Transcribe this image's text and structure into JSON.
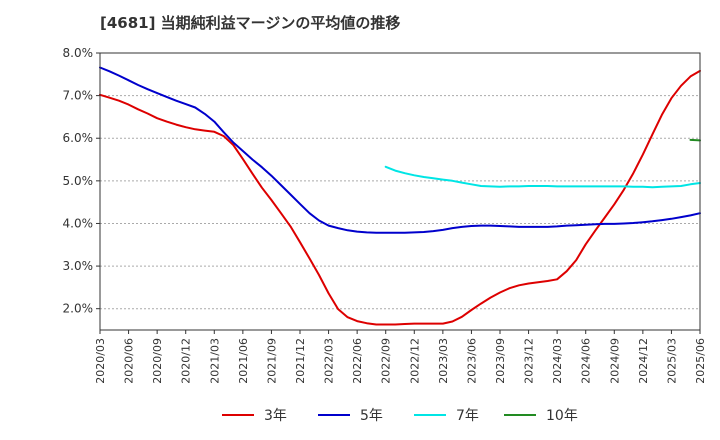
{
  "chart_data": {
    "type": "line",
    "title": "[4681]  当期純利益マージンの平均値の推移",
    "xlabel": "",
    "ylabel": "",
    "ylim": [
      1.5,
      8.0
    ],
    "yticks": [
      "2.0%",
      "3.0%",
      "4.0%",
      "5.0%",
      "6.0%",
      "7.0%",
      "8.0%"
    ],
    "x_ticks": [
      "2020/03",
      "2020/06",
      "2020/09",
      "2020/12",
      "2021/03",
      "2021/06",
      "2021/09",
      "2021/12",
      "2022/03",
      "2022/06",
      "2022/09",
      "2022/12",
      "2023/03",
      "2023/06",
      "2023/09",
      "2023/12",
      "2024/03",
      "2024/06",
      "2024/09",
      "2024/12",
      "2025/03",
      "2025/06"
    ],
    "grid": "horizontal",
    "legend_position": "bottom",
    "series": [
      {
        "name": "3年",
        "color": "#dd0000",
        "points": [
          [
            "2020/03",
            7.02
          ],
          [
            "2020/04",
            6.95
          ],
          [
            "2020/05",
            6.88
          ],
          [
            "2020/06",
            6.79
          ],
          [
            "2020/07",
            6.68
          ],
          [
            "2020/08",
            6.58
          ],
          [
            "2020/09",
            6.47
          ],
          [
            "2020/10",
            6.39
          ],
          [
            "2020/11",
            6.32
          ],
          [
            "2020/12",
            6.26
          ],
          [
            "2021/01",
            6.21
          ],
          [
            "2021/02",
            6.18
          ],
          [
            "2021/03",
            6.15
          ],
          [
            "2021/04",
            6.05
          ],
          [
            "2021/05",
            5.84
          ],
          [
            "2021/06",
            5.51
          ],
          [
            "2021/07",
            5.17
          ],
          [
            "2021/08",
            4.84
          ],
          [
            "2021/09",
            4.55
          ],
          [
            "2021/10",
            4.24
          ],
          [
            "2021/11",
            3.93
          ],
          [
            "2021/12",
            3.56
          ],
          [
            "2022/01",
            3.18
          ],
          [
            "2022/02",
            2.79
          ],
          [
            "2022/03",
            2.36
          ],
          [
            "2022/04",
            1.99
          ],
          [
            "2022/05",
            1.8
          ],
          [
            "2022/06",
            1.71
          ],
          [
            "2022/07",
            1.66
          ],
          [
            "2022/08",
            1.63
          ],
          [
            "2022/09",
            1.63
          ],
          [
            "2022/10",
            1.63
          ],
          [
            "2022/11",
            1.64
          ],
          [
            "2022/12",
            1.65
          ],
          [
            "2023/01",
            1.65
          ],
          [
            "2023/02",
            1.65
          ],
          [
            "2023/03",
            1.65
          ],
          [
            "2023/04",
            1.7
          ],
          [
            "2023/05",
            1.81
          ],
          [
            "2023/06",
            1.97
          ],
          [
            "2023/07",
            2.12
          ],
          [
            "2023/08",
            2.26
          ],
          [
            "2023/09",
            2.38
          ],
          [
            "2023/10",
            2.48
          ],
          [
            "2023/11",
            2.55
          ],
          [
            "2023/12",
            2.59
          ],
          [
            "2024/01",
            2.62
          ],
          [
            "2024/02",
            2.65
          ],
          [
            "2024/03",
            2.69
          ],
          [
            "2024/04",
            2.88
          ],
          [
            "2024/05",
            3.14
          ],
          [
            "2024/06",
            3.51
          ],
          [
            "2024/07",
            3.83
          ],
          [
            "2024/08",
            4.14
          ],
          [
            "2024/09",
            4.45
          ],
          [
            "2024/10",
            4.79
          ],
          [
            "2024/11",
            5.18
          ],
          [
            "2024/12",
            5.62
          ],
          [
            "2025/01",
            6.09
          ],
          [
            "2025/02",
            6.55
          ],
          [
            "2025/03",
            6.94
          ],
          [
            "2025/04",
            7.23
          ],
          [
            "2025/05",
            7.45
          ],
          [
            "2025/06",
            7.58
          ]
        ]
      },
      {
        "name": "5年",
        "color": "#0000cc",
        "points": [
          [
            "2020/03",
            7.66
          ],
          [
            "2020/04",
            7.57
          ],
          [
            "2020/05",
            7.47
          ],
          [
            "2020/06",
            7.36
          ],
          [
            "2020/07",
            7.25
          ],
          [
            "2020/08",
            7.15
          ],
          [
            "2020/09",
            7.06
          ],
          [
            "2020/10",
            6.97
          ],
          [
            "2020/11",
            6.88
          ],
          [
            "2020/12",
            6.8
          ],
          [
            "2021/01",
            6.72
          ],
          [
            "2021/02",
            6.57
          ],
          [
            "2021/03",
            6.39
          ],
          [
            "2021/04",
            6.14
          ],
          [
            "2021/05",
            5.9
          ],
          [
            "2021/06",
            5.7
          ],
          [
            "2021/07",
            5.5
          ],
          [
            "2021/08",
            5.32
          ],
          [
            "2021/09",
            5.12
          ],
          [
            "2021/10",
            4.9
          ],
          [
            "2021/11",
            4.68
          ],
          [
            "2021/12",
            4.46
          ],
          [
            "2022/01",
            4.24
          ],
          [
            "2022/02",
            4.07
          ],
          [
            "2022/03",
            3.95
          ],
          [
            "2022/04",
            3.89
          ],
          [
            "2022/05",
            3.84
          ],
          [
            "2022/06",
            3.81
          ],
          [
            "2022/07",
            3.79
          ],
          [
            "2022/08",
            3.78
          ],
          [
            "2022/09",
            3.78
          ],
          [
            "2022/10",
            3.78
          ],
          [
            "2022/11",
            3.78
          ],
          [
            "2022/12",
            3.79
          ],
          [
            "2023/01",
            3.8
          ],
          [
            "2023/02",
            3.82
          ],
          [
            "2023/03",
            3.85
          ],
          [
            "2023/04",
            3.89
          ],
          [
            "2023/05",
            3.92
          ],
          [
            "2023/06",
            3.94
          ],
          [
            "2023/07",
            3.95
          ],
          [
            "2023/08",
            3.95
          ],
          [
            "2023/09",
            3.94
          ],
          [
            "2023/10",
            3.93
          ],
          [
            "2023/11",
            3.92
          ],
          [
            "2023/12",
            3.92
          ],
          [
            "2024/01",
            3.92
          ],
          [
            "2024/02",
            3.92
          ],
          [
            "2024/03",
            3.93
          ],
          [
            "2024/04",
            3.95
          ],
          [
            "2024/05",
            3.96
          ],
          [
            "2024/06",
            3.97
          ],
          [
            "2024/07",
            3.98
          ],
          [
            "2024/08",
            3.99
          ],
          [
            "2024/09",
            3.99
          ],
          [
            "2024/10",
            4.0
          ],
          [
            "2024/11",
            4.01
          ],
          [
            "2024/12",
            4.03
          ],
          [
            "2025/01",
            4.05
          ],
          [
            "2025/02",
            4.08
          ],
          [
            "2025/03",
            4.11
          ],
          [
            "2025/04",
            4.15
          ],
          [
            "2025/05",
            4.19
          ],
          [
            "2025/06",
            4.24
          ]
        ]
      },
      {
        "name": "7年",
        "color": "#00e5e5",
        "points": [
          [
            "2022/09",
            5.33
          ],
          [
            "2022/10",
            5.24
          ],
          [
            "2022/11",
            5.18
          ],
          [
            "2022/12",
            5.13
          ],
          [
            "2023/01",
            5.09
          ],
          [
            "2023/02",
            5.06
          ],
          [
            "2023/03",
            5.03
          ],
          [
            "2023/04",
            5.0
          ],
          [
            "2023/05",
            4.96
          ],
          [
            "2023/06",
            4.92
          ],
          [
            "2023/07",
            4.88
          ],
          [
            "2023/08",
            4.87
          ],
          [
            "2023/09",
            4.86
          ],
          [
            "2023/10",
            4.87
          ],
          [
            "2023/11",
            4.87
          ],
          [
            "2023/12",
            4.88
          ],
          [
            "2024/01",
            4.88
          ],
          [
            "2024/02",
            4.88
          ],
          [
            "2024/03",
            4.87
          ],
          [
            "2024/04",
            4.87
          ],
          [
            "2024/05",
            4.87
          ],
          [
            "2024/06",
            4.87
          ],
          [
            "2024/07",
            4.87
          ],
          [
            "2024/08",
            4.87
          ],
          [
            "2024/09",
            4.87
          ],
          [
            "2024/10",
            4.87
          ],
          [
            "2024/11",
            4.86
          ],
          [
            "2024/12",
            4.86
          ],
          [
            "2025/01",
            4.85
          ],
          [
            "2025/02",
            4.86
          ],
          [
            "2025/03",
            4.87
          ],
          [
            "2025/04",
            4.88
          ],
          [
            "2025/05",
            4.92
          ],
          [
            "2025/06",
            4.95
          ]
        ]
      },
      {
        "name": "10年",
        "color": "#228b22",
        "points": [
          [
            "2025/05",
            5.96
          ],
          [
            "2025/06",
            5.95
          ]
        ]
      }
    ]
  }
}
